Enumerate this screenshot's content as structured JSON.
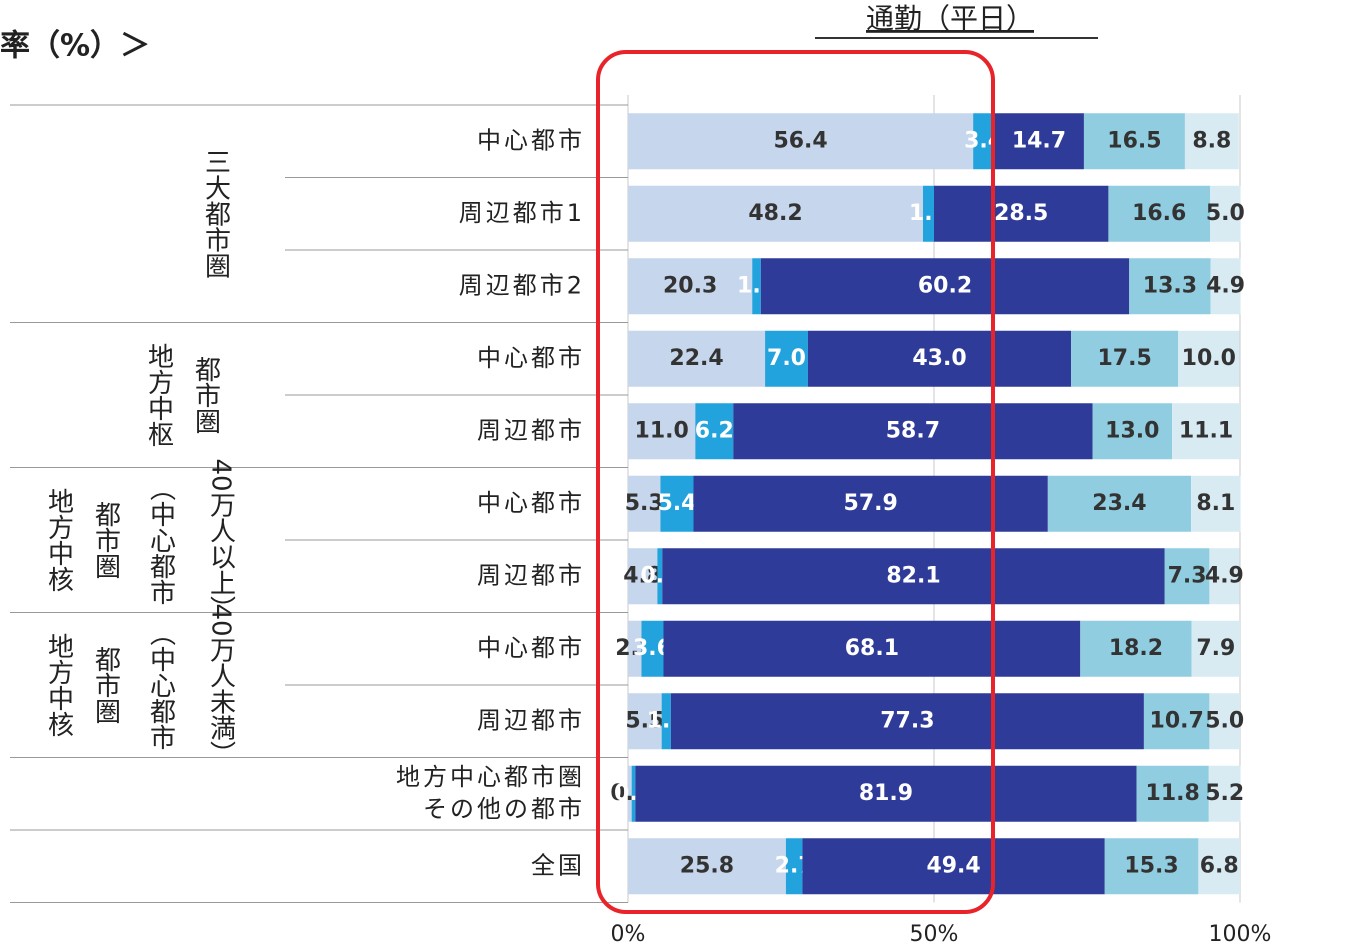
{
  "chart_data": {
    "type": "stacked-bar-horizontal",
    "title": "通勤（平日）",
    "subtitle": "率（%）＞",
    "groups": [
      {
        "lines": [
          "三大都市圏"
        ]
      },
      {
        "lines": [
          "地方中枢",
          "都市圏"
        ]
      },
      {
        "lines": [
          "地方中核",
          "都市圏",
          "（中心都市",
          "40万人以上）"
        ]
      },
      {
        "lines": [
          "地方中核",
          "都市圏",
          "（中心都市",
          "40万人未満）"
        ]
      }
    ],
    "categories": [
      "中心都市",
      "周辺都市1",
      "周辺都市2",
      "中心都市",
      "周辺都市",
      "中心都市",
      "周辺都市",
      "中心都市",
      "周辺都市",
      "地方中心都市圏\nその他の都市",
      "全国"
    ],
    "series": [
      {
        "color": "#c6d6ec",
        "values": [
          56.4,
          48.2,
          20.3,
          22.4,
          11.0,
          5.3,
          4.8,
          2.2,
          5.5,
          0.6,
          25.8
        ],
        "value_labels": [
          "56.4",
          "48.2",
          "20.3",
          "22.4",
          "11.0",
          "5.3",
          "4.8",
          "2.2",
          "5.5",
          "0.6",
          "25.8"
        ]
      },
      {
        "color": "#23a3dd",
        "values": [
          3.4,
          1.8,
          1.4,
          7.0,
          6.2,
          5.4,
          0.8,
          3.6,
          1.5,
          0.6,
          2.7
        ],
        "value_labels": [
          "3.4",
          "1.8",
          "1.4",
          "7.0",
          "6.2",
          "5.4",
          "0.8",
          "3.6",
          "1.5",
          "0.6",
          "2.7"
        ]
      },
      {
        "color": "#2f3b98",
        "values": [
          14.7,
          28.5,
          60.2,
          43.0,
          58.7,
          57.9,
          82.1,
          68.1,
          77.3,
          81.9,
          49.4
        ],
        "value_labels": [
          "14.7",
          "28.5",
          "60.2",
          "43.0",
          "58.7",
          "57.9",
          "82.1",
          "68.1",
          "77.3",
          "81.9",
          "49.4"
        ]
      },
      {
        "color": "#90cde0",
        "values": [
          16.5,
          16.6,
          13.3,
          17.5,
          13.0,
          23.4,
          7.3,
          18.2,
          10.7,
          11.8,
          15.3
        ],
        "value_labels": [
          "16.5",
          "16.6",
          "13.3",
          "17.5",
          "13.0",
          "23.4",
          "7.3",
          "18.2",
          "10.7",
          "11.8",
          "15.3"
        ]
      },
      {
        "color": "#d8ebf3",
        "values": [
          8.8,
          5.0,
          4.9,
          10.0,
          11.1,
          8.1,
          4.9,
          7.9,
          5.0,
          5.2,
          6.8
        ],
        "value_labels": [
          "8.8",
          "5.0",
          "4.9",
          "10.0",
          "11.1",
          "8.1",
          "4.9",
          "7.9",
          "5.0",
          "5.2",
          "6.8"
        ]
      }
    ],
    "xlim": [
      0,
      100
    ],
    "xticks": [
      {
        "value": 0,
        "label": "0%"
      },
      {
        "value": 50,
        "label": "50%"
      },
      {
        "value": 100,
        "label": "100%"
      }
    ],
    "grid": true
  }
}
